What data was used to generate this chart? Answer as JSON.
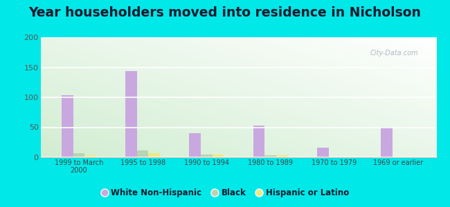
{
  "title": "Year householders moved into residence in Nicholson",
  "categories": [
    "1999 to March\n2000",
    "1995 to 1998",
    "1990 to 1994",
    "1980 to 1989",
    "1970 to 1979",
    "1969 or earlier"
  ],
  "series": {
    "White Non-Hispanic": [
      103,
      144,
      40,
      53,
      16,
      51
    ],
    "Black": [
      7,
      11,
      5,
      4,
      0,
      0
    ],
    "Hispanic or Latino": [
      4,
      7,
      5,
      3,
      0,
      0
    ]
  },
  "colors": {
    "White Non-Hispanic": "#c9a8e0",
    "Black": "#b8d4b0",
    "Hispanic or Latino": "#eeea80"
  },
  "ylim": [
    0,
    200
  ],
  "yticks": [
    0,
    50,
    100,
    150,
    200
  ],
  "background_outer": "#00e8e8",
  "grid_color": "#ffffff",
  "bar_width": 0.18,
  "title_fontsize": 13.5,
  "title_color": "#1a1a2e"
}
